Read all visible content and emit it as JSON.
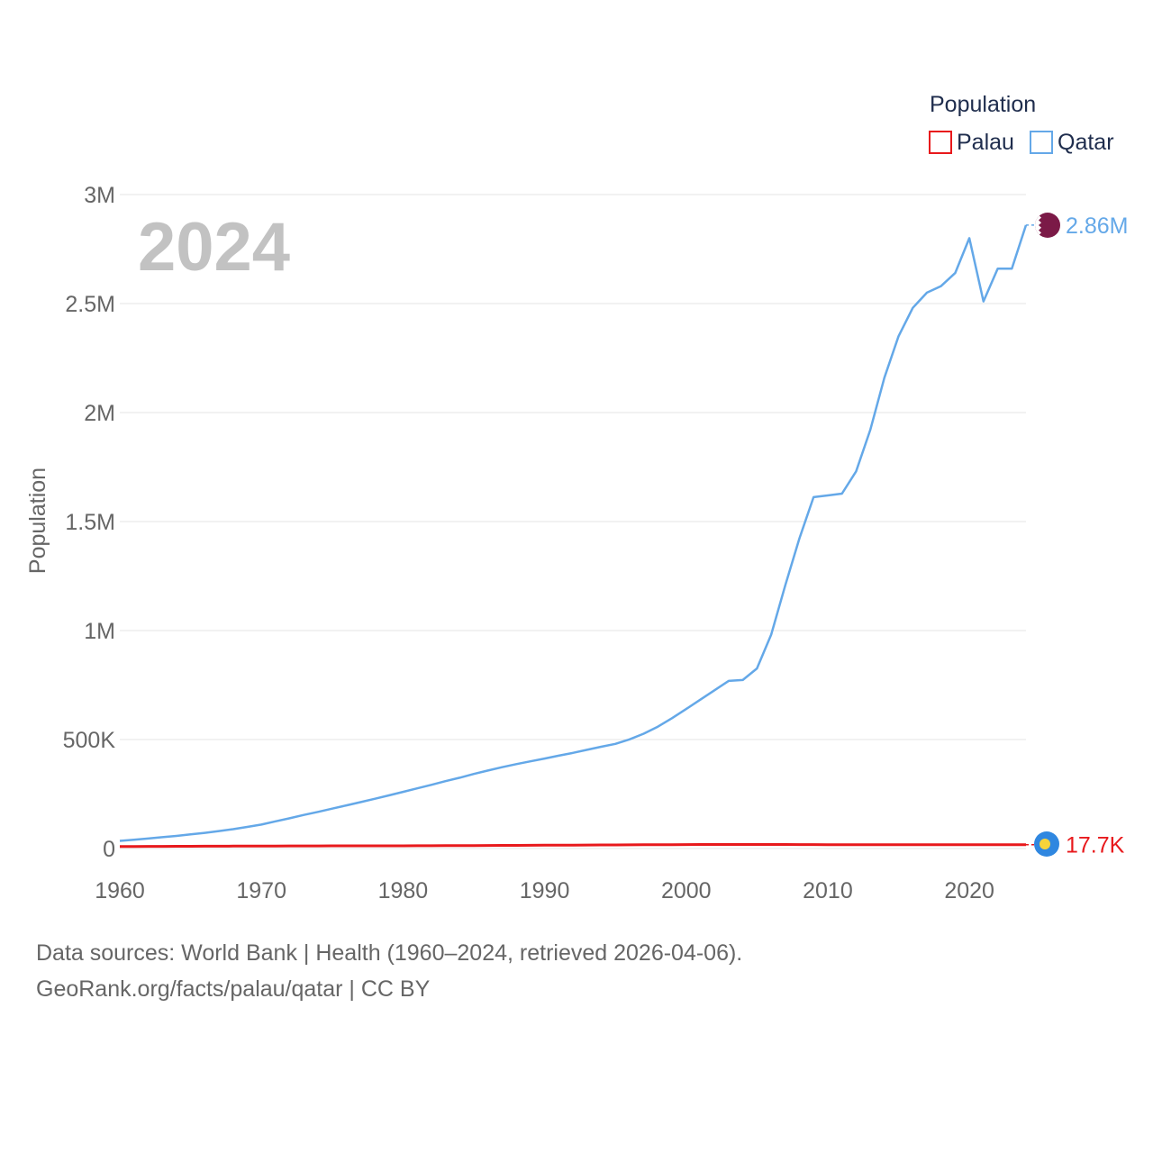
{
  "chart_data": {
    "type": "line",
    "title": "",
    "year_label": "2024",
    "xlabel": "",
    "ylabel": "Population",
    "xlim": [
      1960,
      2024
    ],
    "ylim": [
      0,
      3000000
    ],
    "grid": true,
    "x_ticks": [
      {
        "value": 1960,
        "label": "1960"
      },
      {
        "value": 1970,
        "label": "1970"
      },
      {
        "value": 1980,
        "label": "1980"
      },
      {
        "value": 1990,
        "label": "1990"
      },
      {
        "value": 2000,
        "label": "2000"
      },
      {
        "value": 2010,
        "label": "2010"
      },
      {
        "value": 2020,
        "label": "2020"
      }
    ],
    "y_ticks": [
      {
        "value": 0,
        "label": "0"
      },
      {
        "value": 500000,
        "label": "500K"
      },
      {
        "value": 1000000,
        "label": "1M"
      },
      {
        "value": 1500000,
        "label": "1.5M"
      },
      {
        "value": 2000000,
        "label": "2M"
      },
      {
        "value": 2500000,
        "label": "2.5M"
      },
      {
        "value": 3000000,
        "label": "3M"
      }
    ],
    "legend": {
      "title": "Population",
      "placement": "top-right",
      "entries": [
        "Palau",
        "Qatar"
      ]
    },
    "x": [
      1960,
      1961,
      1962,
      1963,
      1964,
      1965,
      1966,
      1967,
      1968,
      1969,
      1970,
      1971,
      1972,
      1973,
      1974,
      1975,
      1976,
      1977,
      1978,
      1979,
      1980,
      1981,
      1982,
      1983,
      1984,
      1985,
      1986,
      1987,
      1988,
      1989,
      1990,
      1991,
      1992,
      1993,
      1994,
      1995,
      1996,
      1997,
      1998,
      1999,
      2000,
      2001,
      2002,
      2003,
      2004,
      2005,
      2006,
      2007,
      2008,
      2009,
      2010,
      2011,
      2012,
      2013,
      2014,
      2015,
      2016,
      2017,
      2018,
      2019,
      2020,
      2021,
      2022,
      2023,
      2024
    ],
    "series": [
      {
        "name": "Palau",
        "color": "#e8191c",
        "end_label": "17.7K",
        "values": [
          9400,
          9600,
          9800,
          10000,
          10200,
          10400,
          10600,
          10800,
          11000,
          11200,
          11400,
          11600,
          11800,
          12000,
          12100,
          12200,
          12300,
          12350,
          12400,
          12450,
          12500,
          12700,
          12900,
          13100,
          13400,
          13700,
          14000,
          14300,
          14600,
          14900,
          15200,
          15500,
          15800,
          16100,
          16400,
          16700,
          17000,
          17300,
          17600,
          17900,
          18200,
          18400,
          18600,
          18700,
          18750,
          18700,
          18650,
          18500,
          18300,
          18100,
          17950,
          17800,
          17700,
          17650,
          17650,
          17700,
          17750,
          17800,
          17800,
          17800,
          17750,
          17700,
          17700,
          17700,
          17700
        ]
      },
      {
        "name": "Qatar",
        "color": "#64a8e8",
        "end_label": "2.86M",
        "values": [
          35000,
          40000,
          46000,
          52000,
          58000,
          65000,
          72000,
          80000,
          89000,
          99000,
          110000,
          125000,
          139000,
          154000,
          168000,
          183000,
          198000,
          213000,
          228000,
          244000,
          260000,
          276000,
          292000,
          309000,
          325000,
          342000,
          358000,
          373000,
          387000,
          400000,
          413000,
          426000,
          439000,
          453000,
          467000,
          480000,
          501000,
          527000,
          559000,
          598000,
          640000,
          683000,
          726000,
          769000,
          773000,
          826000,
          981000,
          1208000,
          1423000,
          1612000,
          1620000,
          1628000,
          1730000,
          1920000,
          2160000,
          2350000,
          2480000,
          2550000,
          2580000,
          2640000,
          2800000,
          2510000,
          2660000,
          2660000,
          2860000
        ]
      }
    ]
  },
  "sources": {
    "line1": "Data sources: World Bank | Health (1960–2024, retrieved 2026-04-06).",
    "line2": "GeoRank.org/facts/palau/qatar | CC BY"
  },
  "flags": {
    "qatar_icon": "qatar-flag-icon",
    "palau_icon": "palau-flag-icon",
    "qatar_colors": {
      "maroon": "#7b1a47",
      "white": "#ffffff"
    },
    "palau_colors": {
      "blue": "#2f87e0",
      "yellow": "#f7d43a"
    }
  }
}
